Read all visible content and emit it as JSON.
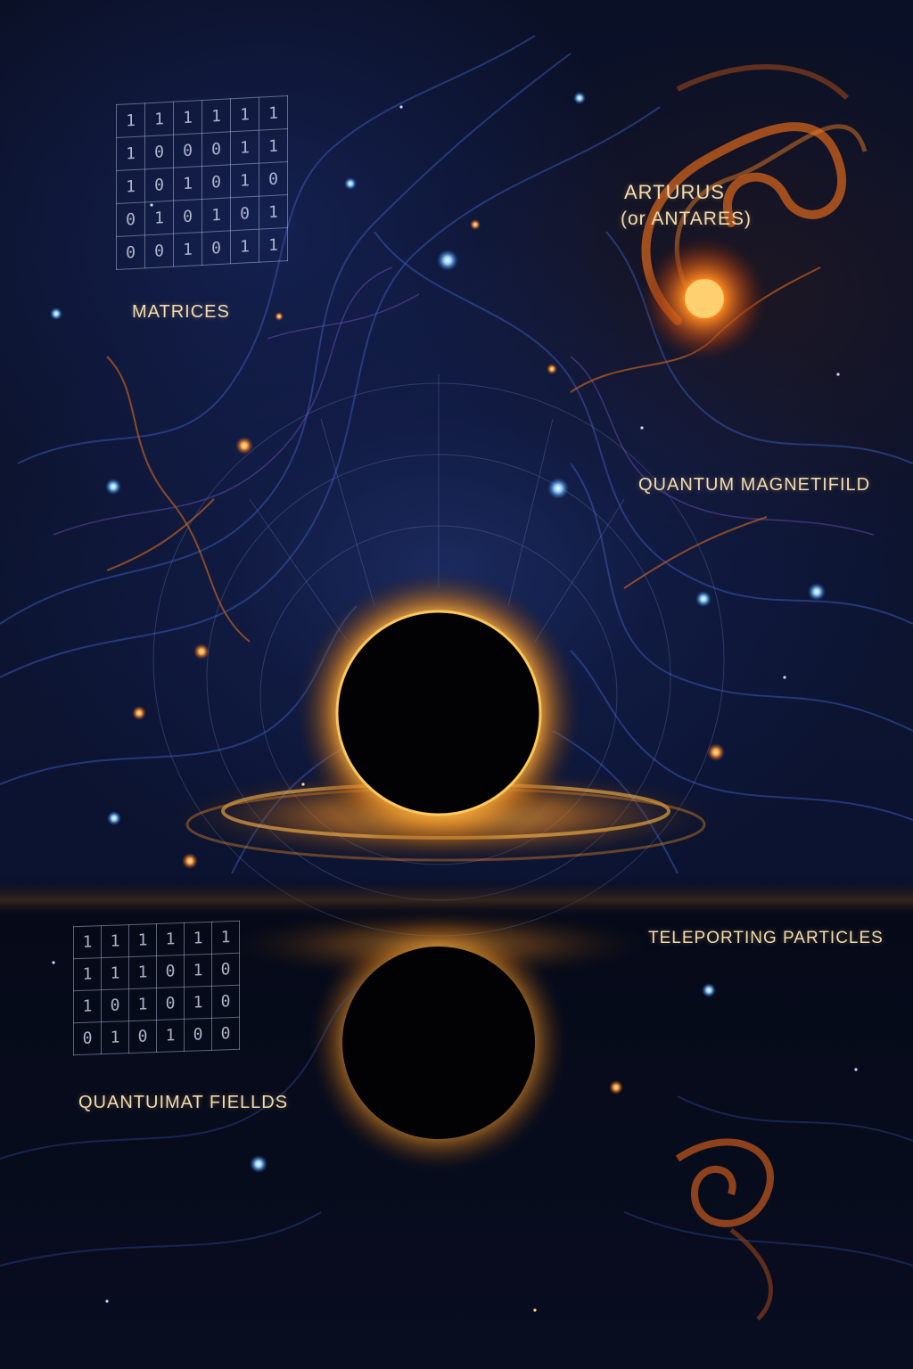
{
  "labels": {
    "star": "ARTURUS",
    "star_alt": "(or ANTARES)",
    "matrices": "MATRICES",
    "magnetic_field": "QUANTUM MAGNETIFILD",
    "teleporting": "TELEPORTING PARTICLES",
    "fields": "QUANTUIMAT FIELLDS"
  },
  "matrix_top": [
    [
      "1",
      "1",
      "1",
      "1",
      "1",
      "1"
    ],
    [
      "1",
      "0",
      "0",
      "0",
      "1",
      "1"
    ],
    [
      "1",
      "0",
      "1",
      "0",
      "1",
      "0"
    ],
    [
      "0",
      "1",
      "0",
      "1",
      "0",
      "1"
    ],
    [
      "0",
      "0",
      "1",
      "0",
      "1",
      "1"
    ]
  ],
  "matrix_bottom": [
    [
      "1",
      "1",
      "1",
      "1",
      "1",
      "1"
    ],
    [
      "1",
      "1",
      "1",
      "0",
      "1",
      "0"
    ],
    [
      "1",
      "0",
      "1",
      "0",
      "1",
      "0"
    ],
    [
      "0",
      "1",
      "0",
      "1",
      "0",
      "0"
    ]
  ],
  "colors": {
    "space": "#0a1026",
    "nebula_blue": "#1b2a5e",
    "accretion_orange": "#f0a030",
    "star_orange": "#ff8a20",
    "label_cream": "#f1dcae"
  }
}
